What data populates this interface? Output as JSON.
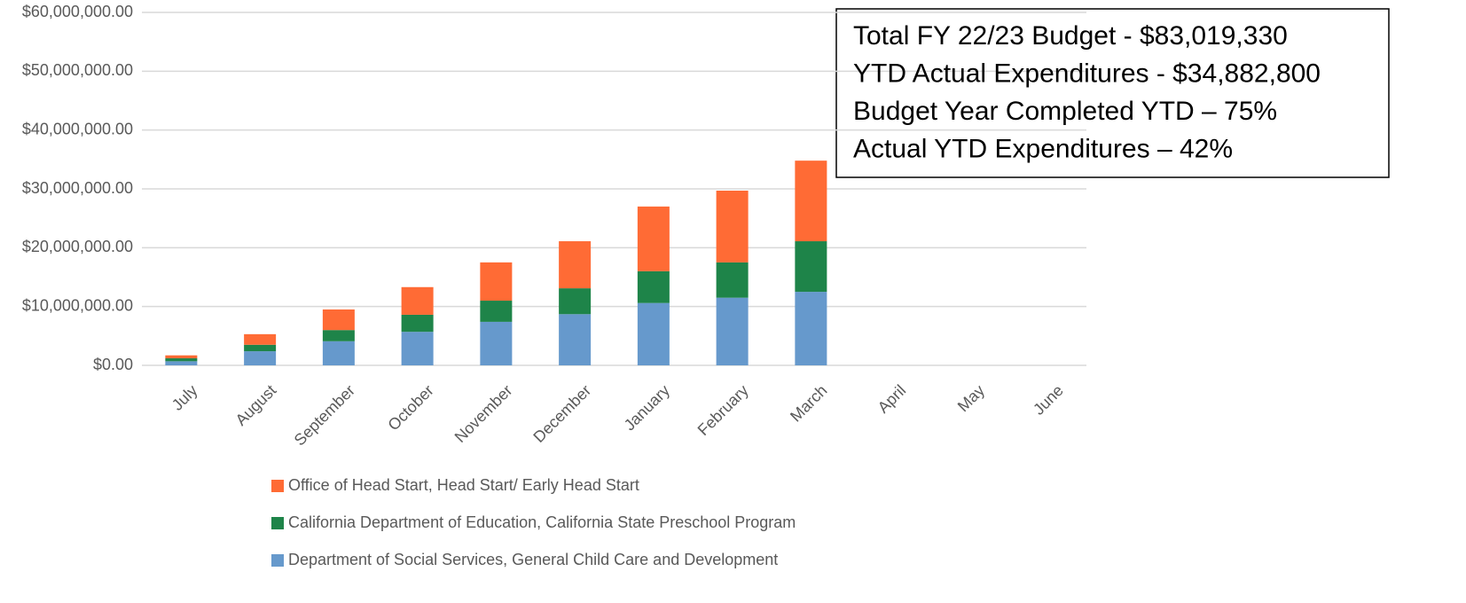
{
  "chart_data": {
    "type": "stacked_bar",
    "categories": [
      "July",
      "August",
      "September",
      "October",
      "November",
      "December",
      "January",
      "February",
      "March",
      "April",
      "May",
      "June"
    ],
    "series": [
      {
        "name": "Department of Social Services, General Child Care and Development",
        "color": "#6699cc",
        "values": [
          700000,
          2400000,
          4100000,
          5700000,
          7400000,
          8700000,
          10600000,
          11500000,
          12500000,
          null,
          null,
          null
        ]
      },
      {
        "name": "California Department of Education, California State Preschool Program",
        "color": "#1e8449",
        "values": [
          500000,
          1100000,
          1900000,
          2900000,
          3600000,
          4400000,
          5400000,
          6000000,
          8600000,
          null,
          null,
          null
        ]
      },
      {
        "name": "Office of Head Start, Head Start/ Early Head Start",
        "color": "#ff6b35",
        "values": [
          500000,
          1800000,
          3500000,
          4700000,
          6500000,
          8000000,
          11000000,
          12200000,
          13700000,
          null,
          null,
          null
        ]
      }
    ],
    "ylim": [
      0,
      60000000
    ],
    "yticks": [
      {
        "value": 0,
        "label": "$0.00"
      },
      {
        "value": 10000000,
        "label": "$10,000,000.00"
      },
      {
        "value": 20000000,
        "label": "$20,000,000.00"
      },
      {
        "value": 30000000,
        "label": "$30,000,000.00"
      },
      {
        "value": 40000000,
        "label": "$40,000,000.00"
      },
      {
        "value": 50000000,
        "label": "$50,000,000.00"
      },
      {
        "value": 60000000,
        "label": "$60,000,000.00"
      }
    ],
    "grid": true,
    "legend": "bottom",
    "annotations": [
      "Total FY 22/23 Budget - $83,019,330",
      "YTD Actual Expenditures - $34,882,800",
      "Budget Year Completed YTD – 75%",
      "Actual YTD Expenditures – 42%"
    ]
  }
}
